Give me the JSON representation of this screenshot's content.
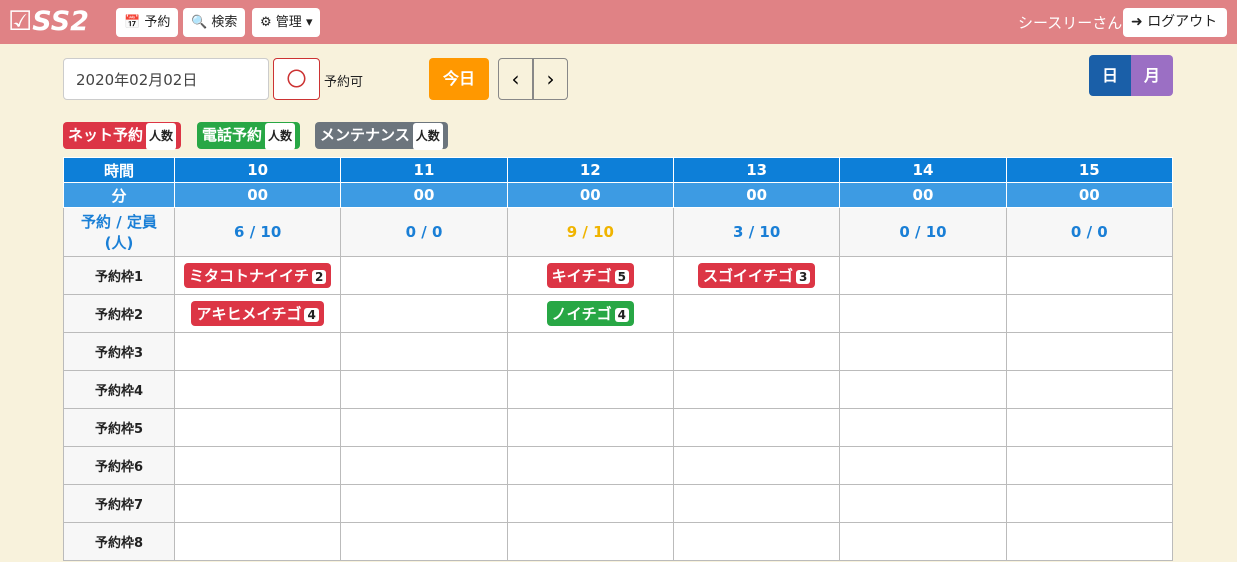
{
  "navbar": {
    "logo": "SS2",
    "menu": [
      "予約",
      "検索",
      "管理"
    ],
    "user": "シースリーさん",
    "logout": "ログアウト"
  },
  "controls": {
    "date": "2020年02月02日",
    "status_mark": "〇",
    "status": "予約可",
    "today": "今日",
    "views": [
      "日",
      "月"
    ]
  },
  "legend": [
    {
      "label": "ネット予約",
      "badge": "人数",
      "color": "#dc3545"
    },
    {
      "label": "電話予約",
      "badge": "人数",
      "color": "#28a745"
    },
    {
      "label": "メンテナンス",
      "badge": "人数",
      "color": "#6c757d"
    }
  ],
  "table": {
    "hour_label": "時間",
    "hours": [
      "10",
      "11",
      "12",
      "13",
      "14",
      "15"
    ],
    "minute_label": "分",
    "minutes": [
      "00",
      "00",
      "00",
      "00",
      "00",
      "00"
    ],
    "capacity_label": [
      "予約 / 定員",
      "(人)"
    ],
    "capacity": [
      {
        "text": "6 / 10",
        "color": "#1a7fd6"
      },
      {
        "text": "0 / 0",
        "color": "#1a7fd6"
      },
      {
        "text": "9 / 10",
        "color": "#f0b400"
      },
      {
        "text": "3 / 10",
        "color": "#1a7fd6"
      },
      {
        "text": "0 / 10",
        "color": "#1a7fd6"
      },
      {
        "text": "0 / 0",
        "color": "#1a7fd6"
      }
    ],
    "rows": [
      {
        "label": "予約枠1",
        "cells": [
          {
            "name": "ミタコトナイイチ",
            "count": 2,
            "color": "#dc3545"
          },
          null,
          {
            "name": "キイチゴ",
            "count": 5,
            "color": "#dc3545"
          },
          {
            "name": "スゴイイチゴ",
            "count": 3,
            "color": "#dc3545"
          },
          null,
          null
        ]
      },
      {
        "label": "予約枠2",
        "cells": [
          {
            "name": "アキヒメイチゴ",
            "count": 4,
            "color": "#dc3545"
          },
          null,
          {
            "name": "ノイチゴ",
            "count": 4,
            "color": "#28a745"
          },
          null,
          null,
          null
        ]
      },
      {
        "label": "予約枠3",
        "cells": [
          null,
          null,
          null,
          null,
          null,
          null
        ]
      },
      {
        "label": "予約枠4",
        "cells": [
          null,
          null,
          null,
          null,
          null,
          null
        ]
      },
      {
        "label": "予約枠5",
        "cells": [
          null,
          null,
          null,
          null,
          null,
          null
        ]
      },
      {
        "label": "予約枠6",
        "cells": [
          null,
          null,
          null,
          null,
          null,
          null
        ]
      },
      {
        "label": "予約枠7",
        "cells": [
          null,
          null,
          null,
          null,
          null,
          null
        ]
      },
      {
        "label": "予約枠8",
        "cells": [
          null,
          null,
          null,
          null,
          null,
          null
        ]
      }
    ]
  }
}
